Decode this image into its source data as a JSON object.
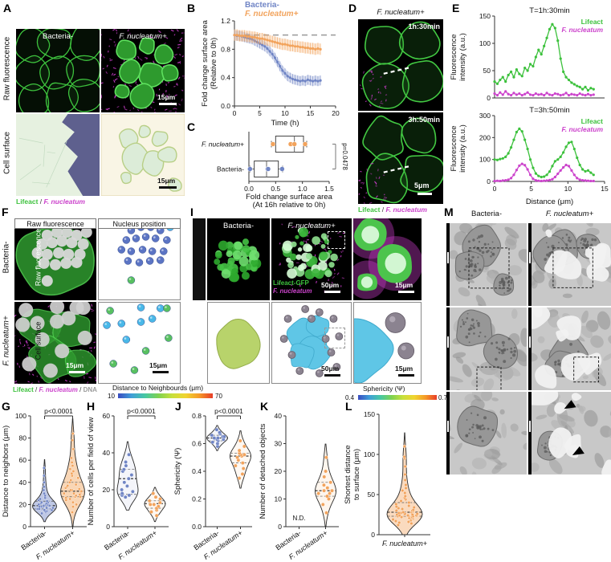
{
  "panels": {
    "A": {
      "letter": "A",
      "row1": "Raw fluorescence",
      "row2": "Cell surface",
      "col1": "Bacteria-",
      "col2": "F. nucleatum+",
      "scale_raw": "15μm",
      "scale_surf": "15μm",
      "legend": {
        "a": "Lifeact",
        "sep": " / ",
        "b": "F. nucleatum"
      }
    },
    "B": {
      "letter": "B",
      "legend1": "Bacteria-",
      "legend2": "F. nucleatum+"
    },
    "C": {
      "letter": "C"
    },
    "D": {
      "letter": "D",
      "title": "F. nucleatum+",
      "t1": "1h:30min",
      "t2": "3h:50min",
      "scale": "5μm",
      "legend": {
        "a": "Lifeact",
        "sep": " / ",
        "b": "F. nucleatum"
      }
    },
    "E": {
      "letter": "E"
    },
    "F": {
      "letter": "F",
      "header1": "Raw fluorescence",
      "header2": "Nucleus position",
      "row1": "Bacteria-",
      "row2": "F. nucleatum+",
      "scale1": "15μm",
      "scale2": "15μm",
      "legend": {
        "a": "Lifeact",
        "s1": " / ",
        "b": "F. nucleatum",
        "s2": " / ",
        "c": "DNA"
      },
      "colorbar": {
        "label": "Distance to Neighbourds (μm)",
        "min": "10",
        "max": "70"
      },
      "dots_b": [
        [
          0.4,
          0.14,
          "b"
        ],
        [
          0.52,
          0.1,
          "b"
        ],
        [
          0.64,
          0.1,
          "b"
        ],
        [
          0.76,
          0.14,
          "b"
        ],
        [
          0.88,
          0.1,
          "c"
        ],
        [
          0.34,
          0.26,
          "b"
        ],
        [
          0.46,
          0.24,
          "b"
        ],
        [
          0.58,
          0.22,
          "b"
        ],
        [
          0.7,
          0.24,
          "b"
        ],
        [
          0.84,
          0.26,
          "b"
        ],
        [
          0.28,
          0.38,
          "b"
        ],
        [
          0.4,
          0.4,
          "b"
        ],
        [
          0.54,
          0.38,
          "b"
        ],
        [
          0.66,
          0.4,
          "b"
        ],
        [
          0.8,
          0.4,
          "b"
        ],
        [
          0.36,
          0.52,
          "b"
        ],
        [
          0.5,
          0.54,
          "b"
        ],
        [
          0.63,
          0.52,
          "b"
        ],
        [
          0.76,
          0.51,
          "b"
        ],
        [
          0.4,
          0.76,
          "g"
        ]
      ],
      "dots_f": [
        [
          0.14,
          0.1,
          "g"
        ],
        [
          0.52,
          0.06,
          "c"
        ],
        [
          0.76,
          0.07,
          "c"
        ],
        [
          0.84,
          0.07,
          "g"
        ],
        [
          0.1,
          0.28,
          "c"
        ],
        [
          0.28,
          0.26,
          "c"
        ],
        [
          0.52,
          0.24,
          "c"
        ],
        [
          0.66,
          0.2,
          "c"
        ],
        [
          0.34,
          0.46,
          "c"
        ],
        [
          0.86,
          0.44,
          "g"
        ],
        [
          0.58,
          0.6,
          "g"
        ],
        [
          0.18,
          0.76,
          "g"
        ],
        [
          0.44,
          0.84,
          "g"
        ]
      ]
    },
    "I": {
      "letter": "I",
      "row1": "Raw fluorescence",
      "row2": "Cell surface",
      "col1": "Bacteria-",
      "col2": "F. nucleatum+",
      "lab1": "Lifeact-GFP",
      "lab2": "F. nucleatum",
      "scale_tm": "50μm",
      "scale_tz": "15μm",
      "scale_bm": "50μm",
      "scale_bz": "15μm",
      "colorbar": {
        "label": "Sphericity (Ψ)",
        "min": "0.4",
        "max": "0.7"
      }
    },
    "M": {
      "letter": "M",
      "col1": "Bacteria-",
      "col2": "F. nucleatum+"
    },
    "G": {
      "letter": "G"
    },
    "H": {
      "letter": "H"
    },
    "J": {
      "letter": "J"
    },
    "K": {
      "letter": "K"
    },
    "L": {
      "letter": "L"
    }
  },
  "colors": {
    "blue": "#7085c5",
    "blue_dark": "#4a5fa8",
    "orange": "#f2a35c",
    "orange_dark": "#d9822e",
    "green": "#3cc13c",
    "magenta": "#cc44cc",
    "gray": "#9a9a9a"
  },
  "chart_data": [
    {
      "id": "B",
      "type": "line",
      "xlabel": "Time (h)",
      "ylabel": [
        "Fold change surface area",
        "(Relative to 0h)"
      ],
      "xlim": [
        0,
        20
      ],
      "ylim": [
        0,
        1.2
      ],
      "xticks": [
        0,
        5,
        10,
        15,
        20
      ],
      "yticks": [
        "0.0",
        "0.4",
        "0.8",
        "1.2"
      ],
      "ref_line": 1.0,
      "x_step": 0.5,
      "series": [
        {
          "name": "Bacteria-",
          "color": "#7085c5",
          "err": 0.07,
          "values": [
            1.0,
            0.99,
            0.99,
            0.98,
            0.97,
            0.96,
            0.95,
            0.94,
            0.92,
            0.9,
            0.88,
            0.86,
            0.84,
            0.81,
            0.77,
            0.73,
            0.68,
            0.62,
            0.56,
            0.5,
            0.46,
            0.42,
            0.4,
            0.38,
            0.37,
            0.36,
            0.35,
            0.36,
            0.35,
            0.37,
            0.36,
            0.35,
            0.36,
            0.35,
            0.36
          ]
        },
        {
          "name": "F. nucleatum+",
          "color": "#f2a35c",
          "err": 0.08,
          "values": [
            1.0,
            1.0,
            0.99,
            0.99,
            0.99,
            0.98,
            0.98,
            0.97,
            0.97,
            0.96,
            0.95,
            0.95,
            0.94,
            0.93,
            0.92,
            0.91,
            0.9,
            0.89,
            0.88,
            0.87,
            0.87,
            0.86,
            0.85,
            0.85,
            0.84,
            0.84,
            0.83,
            0.83,
            0.82,
            0.82,
            0.81,
            0.81,
            0.8,
            0.81,
            0.8
          ]
        }
      ]
    },
    {
      "id": "C",
      "type": "box",
      "xlabel": [
        "Fold change surface area",
        "(At 16h relative to 0h)"
      ],
      "xlim": [
        0,
        1.5
      ],
      "xticks": [
        "0.0",
        "0.5",
        "1.0",
        "1.5"
      ],
      "p_label": "p=0.0478",
      "rows": [
        {
          "label": "F. nucleatum+",
          "color": "#f2a35c",
          "lo": 0.42,
          "q1": 0.5,
          "median": 0.85,
          "q3": 1.02,
          "hi": 1.08,
          "points": [
            0.45,
            0.78,
            0.85,
            1.05
          ]
        },
        {
          "label": "Bacteria-",
          "color": "#7085c5",
          "lo": 0.02,
          "q1": 0.1,
          "median": 0.33,
          "q3": 0.55,
          "hi": 0.63,
          "points": [
            0.02,
            0.35,
            0.36,
            0.62
          ]
        }
      ]
    },
    {
      "id": "E1",
      "type": "line",
      "title": "T=1h:30min",
      "ylabel": [
        "Fluorescence",
        "intensity (a.u.)"
      ],
      "xlim": [
        0,
        15
      ],
      "ylim": [
        0,
        150
      ],
      "yticks": [
        "0",
        "50",
        "100",
        "150"
      ],
      "x_step": 0.375,
      "legend": [
        "Lifeact",
        "F. nucleatum"
      ],
      "series": [
        {
          "name": "Lifeact",
          "color": "#3cc13c",
          "values": [
            30,
            26,
            33,
            38,
            30,
            42,
            48,
            38,
            52,
            44,
            40,
            55,
            50,
            62,
            58,
            75,
            88,
            80,
            95,
            110,
            126,
            135,
            128,
            105,
            72,
            48,
            38,
            33,
            28,
            25,
            22,
            20,
            16,
            20,
            14,
            18,
            16
          ]
        },
        {
          "name": "F. nucleatum",
          "color": "#cc44cc",
          "values": [
            8,
            5,
            10,
            6,
            12,
            7,
            5,
            9,
            6,
            8,
            5,
            7,
            10,
            6,
            5,
            8,
            6,
            7,
            5,
            9,
            6,
            5,
            8,
            7,
            5,
            6,
            9,
            5,
            7,
            6,
            5,
            8,
            6,
            5,
            7,
            5,
            6
          ]
        }
      ]
    },
    {
      "id": "E2",
      "type": "line",
      "title": "T=3h:50min",
      "xlabel": "Distance (μm)",
      "ylabel": [
        "Fluorescence",
        "intensity (a.u.)"
      ],
      "xlim": [
        0,
        15
      ],
      "ylim": [
        0,
        300
      ],
      "yticks": [
        "0",
        "100",
        "200",
        "300"
      ],
      "xticks": [
        0,
        5,
        10,
        15
      ],
      "x_step": 0.375,
      "legend": [
        "Lifeact",
        "F. nucleatum"
      ],
      "series": [
        {
          "name": "Lifeact",
          "color": "#3cc13c",
          "values": [
            100,
            98,
            102,
            105,
            112,
            128,
            155,
            190,
            225,
            240,
            228,
            190,
            148,
            100,
            62,
            36,
            25,
            20,
            22,
            30,
            45,
            70,
            92,
            100,
            112,
            132,
            158,
            176,
            180,
            148,
            108,
            75,
            55,
            46,
            50,
            40,
            30
          ]
        },
        {
          "name": "F. nucleatum",
          "color": "#cc44cc",
          "values": [
            2,
            3,
            2,
            4,
            5,
            8,
            15,
            30,
            52,
            72,
            80,
            74,
            55,
            30,
            12,
            5,
            3,
            2,
            3,
            4,
            6,
            10,
            20,
            35,
            50,
            64,
            75,
            70,
            50,
            30,
            15,
            8,
            5,
            4,
            3,
            2,
            2
          ]
        }
      ]
    },
    {
      "id": "G",
      "type": "violin",
      "ylabel": "Distance to neighbors (μm)",
      "ylim": [
        0,
        100
      ],
      "yticks": [
        "0",
        "20",
        "40",
        "60",
        "80",
        "100"
      ],
      "p_label": "p<0.0001",
      "dot_r": 1.7,
      "halfw": 15,
      "groups": [
        {
          "label": "Bacteria-",
          "color": "#7085c5",
          "fill_alpha": 0.45,
          "median": 19,
          "q1": 16,
          "q3": 23,
          "values": [
            12,
            13,
            14,
            14,
            15,
            15,
            16,
            16,
            16,
            17,
            17,
            17,
            18,
            18,
            18,
            19,
            19,
            19,
            20,
            20,
            20,
            21,
            21,
            22,
            22,
            23,
            24,
            25,
            26,
            28,
            30,
            33,
            36,
            40,
            46,
            53
          ]
        },
        {
          "label": "F. nucleatum+",
          "color": "#f2a35c",
          "fill_alpha": 0.45,
          "median": 32,
          "q1": 27,
          "q3": 40,
          "values": [
            13,
            18,
            20,
            22,
            24,
            25,
            26,
            27,
            27,
            28,
            29,
            30,
            30,
            31,
            32,
            32,
            33,
            33,
            34,
            35,
            36,
            37,
            38,
            40,
            42,
            44,
            46,
            48,
            50,
            52,
            55,
            58,
            62,
            70,
            78,
            84
          ]
        }
      ]
    },
    {
      "id": "H",
      "type": "violin",
      "ylabel": "Number of cells per field of view",
      "ylim": [
        0,
        60
      ],
      "yticks": [
        "0",
        "20",
        "40",
        "60"
      ],
      "p_label": "p<0.0001",
      "dot_r": 2.2,
      "halfw": 13,
      "groups": [
        {
          "label": "Bacteria-",
          "color": "#7085c5",
          "fill_alpha": 0.08,
          "median": 26,
          "q1": 17.5,
          "q3": 31,
          "values": [
            16,
            17,
            17,
            18,
            19,
            20,
            22,
            24,
            26,
            28,
            30,
            31,
            33,
            35,
            39
          ]
        },
        {
          "label": "F. nucleatum+",
          "color": "#f2a35c",
          "fill_alpha": 0.08,
          "median": 12.5,
          "q1": 10,
          "q3": 14,
          "values": [
            6,
            8,
            9,
            10,
            11,
            12,
            12,
            13,
            13,
            14,
            15,
            16,
            18
          ]
        }
      ]
    },
    {
      "id": "J",
      "type": "violin",
      "ylabel": "Sphericity (Ψ)",
      "ylim": [
        0,
        0.8
      ],
      "yticks": [
        "0.0",
        "0.2",
        "0.4",
        "0.6",
        "0.8"
      ],
      "p_label": "p<0.0001",
      "dot_r": 2.2,
      "halfw": 13,
      "groups": [
        {
          "label": "Bacteria-",
          "color": "#7085c5",
          "fill_alpha": 0.08,
          "median": 0.64,
          "q1": 0.62,
          "q3": 0.66,
          "values": [
            0.58,
            0.6,
            0.61,
            0.62,
            0.63,
            0.63,
            0.64,
            0.64,
            0.65,
            0.65,
            0.66,
            0.67,
            0.68,
            0.7
          ]
        },
        {
          "label": "F. nucleatum+",
          "color": "#f2a35c",
          "fill_alpha": 0.08,
          "median": 0.51,
          "q1": 0.46,
          "q3": 0.53,
          "values": [
            0.35,
            0.38,
            0.42,
            0.44,
            0.46,
            0.48,
            0.5,
            0.51,
            0.52,
            0.52,
            0.53,
            0.55,
            0.58,
            0.62
          ]
        }
      ]
    },
    {
      "id": "K",
      "type": "violin",
      "ylabel": "Number of detached objects",
      "ylim": [
        0,
        40
      ],
      "yticks": [
        "0",
        "10",
        "20",
        "30",
        "40"
      ],
      "dot_r": 2.2,
      "halfw": 13,
      "groups": [
        {
          "label": "Bacteria-",
          "color": "#7085c5",
          "nd": "N.D."
        },
        {
          "label": "F. nucleatum+",
          "color": "#f2a35c",
          "fill_alpha": 0.1,
          "median": 13,
          "q1": 11,
          "q3": 16,
          "values": [
            5,
            8,
            10,
            11,
            12,
            12,
            13,
            13,
            14,
            15,
            16,
            18,
            20,
            25
          ]
        }
      ]
    },
    {
      "id": "L",
      "type": "violin",
      "ylabel": [
        "Shortest distance",
        "to surface (μm)"
      ],
      "ylim": [
        0,
        150
      ],
      "yticks": [
        "0",
        "50",
        "100",
        "150"
      ],
      "dot_r": 1.9,
      "halfw": 22,
      "cat_horizontal": true,
      "groups": [
        {
          "label": "F. nucleatum+",
          "color": "#f2a35c",
          "fill_alpha": 0.4,
          "median": 28,
          "q1": 23,
          "q3": 40,
          "values": [
            12,
            14,
            15,
            16,
            17,
            18,
            19,
            20,
            20,
            21,
            21,
            22,
            22,
            23,
            23,
            23,
            24,
            24,
            24,
            25,
            25,
            25,
            26,
            26,
            27,
            27,
            28,
            28,
            29,
            30,
            30,
            31,
            32,
            33,
            34,
            35,
            36,
            38,
            40,
            42,
            44,
            46,
            48,
            52,
            55,
            58,
            62,
            68,
            75,
            85,
            95,
            97,
            110
          ]
        }
      ]
    }
  ]
}
